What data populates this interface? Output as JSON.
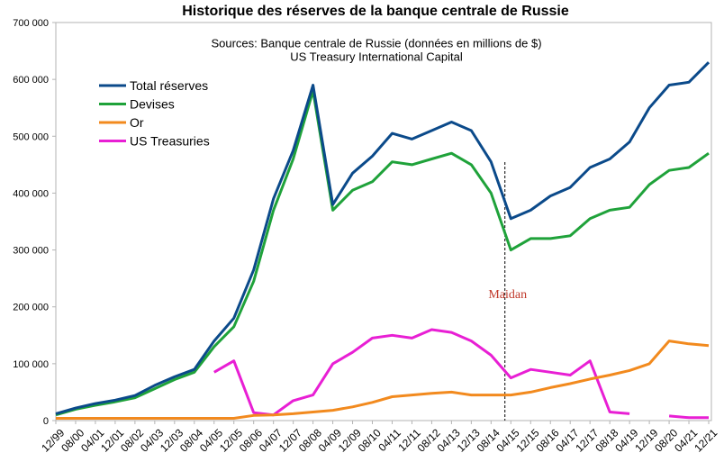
{
  "chart_data": {
    "type": "line",
    "title": "Historique des réserves de la banque centrale de Russie",
    "subtitle": [
      "Sources: Banque centrale de Russie (données en millions de $)",
      "US Treasury International Capital"
    ],
    "annotation": "Maidan",
    "categories": [
      "12/99",
      "08/00",
      "04/01",
      "12/01",
      "08/02",
      "04/03",
      "12/03",
      "08/04",
      "04/05",
      "12/05",
      "08/06",
      "04/07",
      "12/07",
      "08/08",
      "04/09",
      "12/09",
      "08/10",
      "04/11",
      "12/11",
      "08/12",
      "04/13",
      "12/13",
      "08/14",
      "04/15",
      "12/15",
      "08/16",
      "04/17",
      "12/17",
      "08/18",
      "04/19",
      "12/19",
      "08/20",
      "04/21",
      "12/21"
    ],
    "series": [
      {
        "name": "Total réserves",
        "color": "#0b4a8a",
        "values": [
          12000,
          22000,
          30000,
          36000,
          44000,
          62000,
          77000,
          90000,
          140000,
          180000,
          265000,
          390000,
          475000,
          590000,
          380000,
          435000,
          465000,
          505000,
          495000,
          510000,
          525000,
          510000,
          455000,
          355000,
          370000,
          395000,
          410000,
          445000,
          460000,
          490000,
          550000,
          590000,
          595000,
          630000
        ]
      },
      {
        "name": "Devises",
        "color": "#1fa23a",
        "values": [
          10000,
          20000,
          27000,
          33000,
          40000,
          56000,
          72000,
          85000,
          130000,
          165000,
          245000,
          370000,
          460000,
          580000,
          370000,
          405000,
          420000,
          455000,
          450000,
          460000,
          470000,
          450000,
          400000,
          300000,
          320000,
          320000,
          325000,
          355000,
          370000,
          375000,
          415000,
          440000,
          445000,
          470000
        ]
      },
      {
        "name": "Or",
        "color": "#f28a1e",
        "values": [
          4000,
          4000,
          4000,
          4000,
          4000,
          4000,
          4000,
          4000,
          4000,
          4000,
          9000,
          10000,
          12000,
          15000,
          18000,
          24000,
          32000,
          42000,
          45000,
          48000,
          50000,
          45000,
          45000,
          45000,
          50000,
          58000,
          65000,
          73000,
          80000,
          88000,
          100000,
          140000,
          135000,
          132000
        ]
      },
      {
        "name": "US Treasuries",
        "color": "#e81fd4",
        "values": [
          null,
          null,
          null,
          null,
          null,
          null,
          null,
          null,
          85000,
          105000,
          14000,
          10000,
          35000,
          45000,
          100000,
          120000,
          145000,
          150000,
          145000,
          160000,
          155000,
          140000,
          115000,
          75000,
          90000,
          85000,
          80000,
          105000,
          15000,
          12000,
          null,
          8000,
          5000,
          5000
        ]
      }
    ],
    "ylim": [
      0,
      700000
    ],
    "yticks": [
      0,
      {
        "value": 100000,
        "label": "100 000"
      },
      {
        "value": 200000,
        "label": "200 000"
      },
      {
        "value": 300000,
        "label": "300 000"
      },
      {
        "value": 400000,
        "label": "400 000"
      },
      {
        "value": 500000,
        "label": "500 000"
      },
      {
        "value": 600000,
        "label": "600 000"
      },
      {
        "value": 700000,
        "label": "700 000"
      }
    ],
    "grid": false,
    "legend": "top-left"
  }
}
